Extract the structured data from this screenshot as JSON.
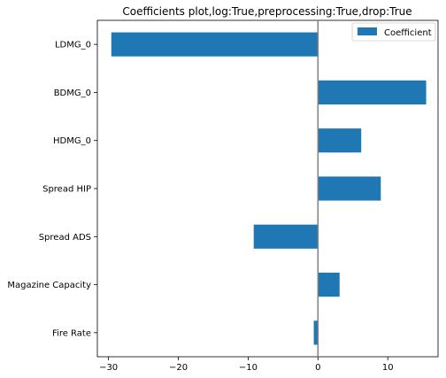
{
  "chart_data": {
    "type": "bar",
    "orientation": "horizontal",
    "title": "Coefficients plot,log:True,preprocessing:True,drop:True",
    "xlabel": "",
    "ylabel": "",
    "categories": [
      "LDMG_0",
      "BDMG_0",
      "HDMG_0",
      "Spread HIP",
      "Spread ADS",
      "Magazine Capacity",
      "Fire Rate"
    ],
    "series": [
      {
        "name": "Coefficient",
        "values": [
          -29.6,
          15.5,
          6.2,
          9.0,
          -9.2,
          3.1,
          -0.6
        ],
        "color": "#1f77b4"
      }
    ],
    "xlim": [
      -31.6,
      17.2
    ],
    "xticks": [
      -30,
      -20,
      -10,
      0,
      10
    ],
    "xtick_labels": [
      "−30",
      "−20",
      "−10",
      "0",
      "10"
    ],
    "zero_line": true,
    "zero_line_color": "#808080",
    "grid": false,
    "legend_position": "top-right"
  }
}
